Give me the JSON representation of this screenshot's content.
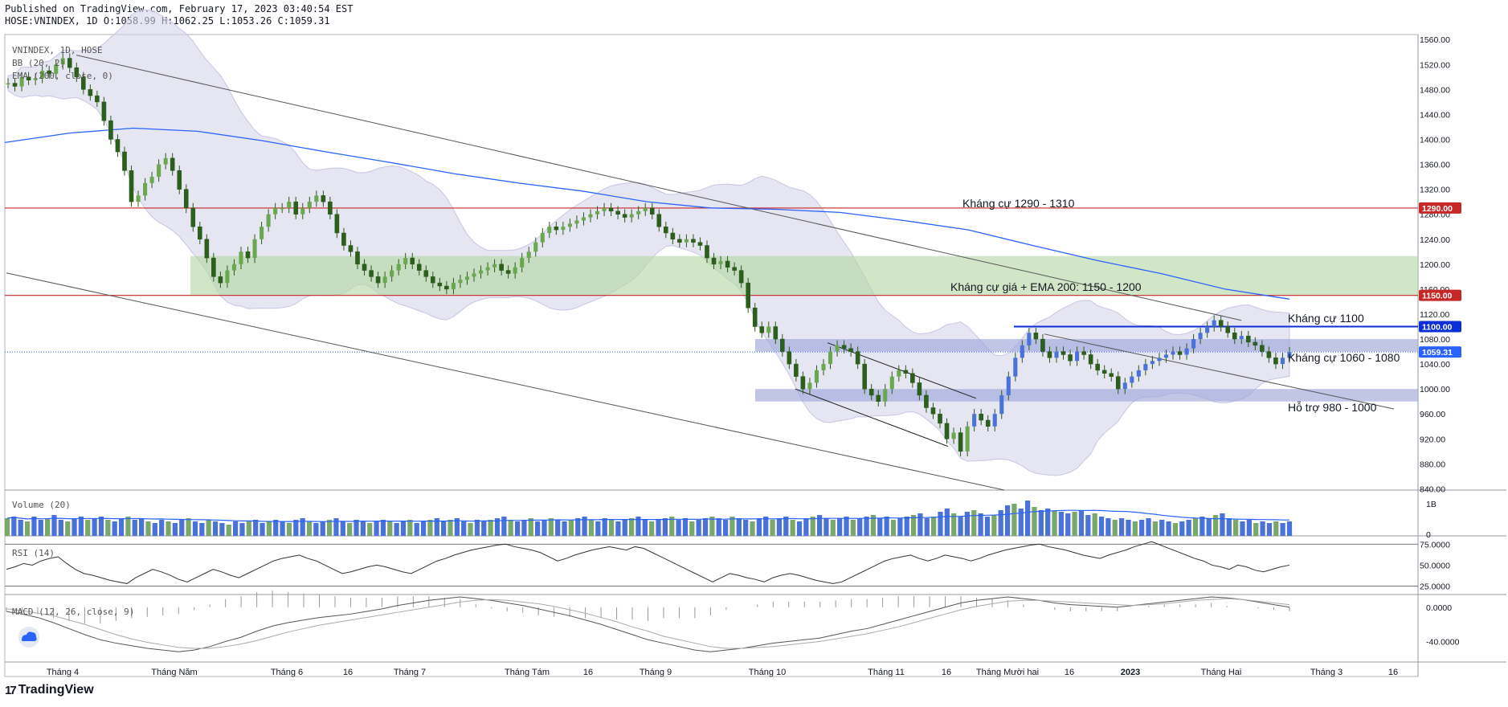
{
  "header": {
    "published": "Published on TradingView.com, February 17, 2023 03:40:54 EST",
    "ohlc": "HOSE:VNINDEX, 1D O:1058.99 H:1062.25 L:1053.26 C:1059.31"
  },
  "brand": {
    "logo": "17",
    "name": "TradingView",
    "logo_icon": "tradingview-logo-icon",
    "widget_icon": "cloud-icon"
  },
  "colors": {
    "up": "#6aa84f",
    "down": "#2c5f1e",
    "up_wick": "#2a5a17",
    "bb_fill": "#d6d4ea",
    "ema": "#2962ff",
    "resistance_line": "#c62828",
    "range_zone": "#9fa8da",
    "green_zone": "#b7d9a8",
    "blue_level": "#0d2fd6",
    "volume_up": "#7aa86c",
    "volume_down": "#4a72d8"
  },
  "chart_data": [
    {
      "type": "candlestick",
      "title": "VNINDEX, 1D, HOSE",
      "indicators": [
        "BB (20, 2)",
        "EMA (200, close, 0)"
      ],
      "y_ticks": [
        1560,
        1520,
        1480,
        1440,
        1400,
        1360,
        1320,
        1280,
        1240,
        1200,
        1160,
        1120,
        1080,
        1040,
        1000,
        960,
        920,
        880,
        840
      ],
      "ylim": [
        838,
        1568
      ],
      "x_ticks": [
        "Tháng 4",
        "Tháng Năm",
        "Tháng 6",
        "16",
        "Tháng 7",
        "Tháng Tám",
        "16",
        "Tháng 9",
        "Tháng 10",
        "Tháng 11",
        "16",
        "Tháng Mười hai",
        "16",
        "2023",
        "Tháng Hai",
        "Tháng 3",
        "16"
      ],
      "closes": [
        1490,
        1485,
        1500,
        1495,
        1498,
        1510,
        1505,
        1520,
        1530,
        1515,
        1500,
        1480,
        1470,
        1460,
        1430,
        1400,
        1380,
        1350,
        1300,
        1310,
        1330,
        1340,
        1360,
        1370,
        1350,
        1320,
        1290,
        1260,
        1240,
        1210,
        1180,
        1170,
        1190,
        1200,
        1220,
        1210,
        1240,
        1260,
        1280,
        1290,
        1290,
        1300,
        1280,
        1290,
        1300,
        1310,
        1300,
        1280,
        1250,
        1230,
        1220,
        1200,
        1190,
        1180,
        1170,
        1180,
        1190,
        1200,
        1210,
        1200,
        1190,
        1180,
        1170,
        1165,
        1160,
        1170,
        1175,
        1180,
        1185,
        1190,
        1195,
        1200,
        1190,
        1185,
        1195,
        1210,
        1220,
        1235,
        1250,
        1260,
        1255,
        1260,
        1265,
        1270,
        1275,
        1280,
        1285,
        1290,
        1285,
        1280,
        1275,
        1280,
        1285,
        1290,
        1280,
        1260,
        1250,
        1240,
        1235,
        1240,
        1235,
        1230,
        1210,
        1200,
        1205,
        1195,
        1190,
        1170,
        1130,
        1100,
        1090,
        1100,
        1080,
        1060,
        1040,
        1020,
        1000,
        1010,
        1030,
        1040,
        1060,
        1070,
        1065,
        1060,
        1040,
        1000,
        990,
        980,
        1000,
        1020,
        1030,
        1025,
        1010,
        990,
        970,
        960,
        945,
        920,
        930,
        900,
        940,
        960,
        950,
        940,
        960,
        990,
        1020,
        1050,
        1070,
        1090,
        1080,
        1060,
        1050,
        1060,
        1055,
        1045,
        1060,
        1055,
        1040,
        1030,
        1025,
        1020,
        1000,
        1010,
        1020,
        1030,
        1040,
        1045,
        1050,
        1055,
        1060,
        1055,
        1065,
        1080,
        1090,
        1100,
        1110,
        1100,
        1090,
        1080,
        1085,
        1075,
        1070,
        1060,
        1050,
        1040,
        1050,
        1059.31
      ],
      "ema200_approx": [
        1395,
        1410,
        1418,
        1413,
        1398,
        1380,
        1363,
        1345,
        1330,
        1317,
        1300,
        1290,
        1288,
        1283,
        1270,
        1255,
        1230,
        1206,
        1185,
        1160,
        1144
      ],
      "levels": [
        {
          "name": "resistance",
          "value": 1290,
          "label": "1290.00",
          "color": "#c62828"
        },
        {
          "name": "resistance",
          "value": 1150,
          "label": "1150.00",
          "color": "#c62828"
        },
        {
          "name": "blue",
          "value": 1100,
          "label": "1100.00",
          "color": "#0d2fd6"
        },
        {
          "name": "last",
          "value": 1059.31,
          "label": "1059.31",
          "color": "#2962ff"
        }
      ],
      "zones": [
        {
          "label": "",
          "from": 1150,
          "to": 1213,
          "color": "#b7d9a8"
        },
        {
          "label": "",
          "from": 1060,
          "to": 1080,
          "color": "#9fa8da"
        },
        {
          "label": "",
          "from": 980,
          "to": 1000,
          "color": "#9fa8da"
        }
      ],
      "annotations": [
        {
          "text": "Kháng cự 1290 - 1310"
        },
        {
          "text": "Kháng cự giá + EMA 200: 1150 - 1200"
        },
        {
          "text": "Kháng cự 1100"
        },
        {
          "text": "Kháng cự 1060 - 1080"
        },
        {
          "text": "Hỗ trợ 980 - 1000"
        }
      ]
    },
    {
      "type": "bar",
      "title": "Volume (20)",
      "y_ticks": [
        "1B",
        "0"
      ],
      "volumes": [
        0.55,
        0.6,
        0.5,
        0.45,
        0.6,
        0.5,
        0.55,
        0.65,
        0.5,
        0.45,
        0.55,
        0.6,
        0.5,
        0.55,
        0.6,
        0.5,
        0.45,
        0.55,
        0.6,
        0.5,
        0.55,
        0.45,
        0.4,
        0.5,
        0.45,
        0.4,
        0.5,
        0.55,
        0.45,
        0.4,
        0.5,
        0.45,
        0.4,
        0.35,
        0.45,
        0.4,
        0.45,
        0.5,
        0.4,
        0.45,
        0.5,
        0.45,
        0.4,
        0.5,
        0.55,
        0.45,
        0.4,
        0.45,
        0.5,
        0.55,
        0.45,
        0.4,
        0.5,
        0.45,
        0.4,
        0.45,
        0.5,
        0.45,
        0.4,
        0.45,
        0.5,
        0.4,
        0.45,
        0.5,
        0.55,
        0.45,
        0.5,
        0.55,
        0.45,
        0.4,
        0.5,
        0.45,
        0.5,
        0.55,
        0.6,
        0.5,
        0.45,
        0.5,
        0.55,
        0.45,
        0.5,
        0.55,
        0.5,
        0.45,
        0.5,
        0.55,
        0.6,
        0.5,
        0.45,
        0.55,
        0.5,
        0.45,
        0.5,
        0.55,
        0.6,
        0.5,
        0.45,
        0.5,
        0.55,
        0.6,
        0.5,
        0.55,
        0.45,
        0.5,
        0.55,
        0.6,
        0.55,
        0.5,
        0.6,
        0.55,
        0.5,
        0.45,
        0.55,
        0.6,
        0.5,
        0.55,
        0.6,
        0.5,
        0.45,
        0.55,
        0.6,
        0.65,
        0.55,
        0.5,
        0.55,
        0.6,
        0.5,
        0.55,
        0.6,
        0.65,
        0.55,
        0.6,
        0.5,
        0.55,
        0.6,
        0.65,
        0.7,
        0.55,
        0.6,
        0.75,
        0.85,
        0.7,
        0.6,
        0.75,
        0.8,
        0.7,
        0.6,
        0.65,
        0.8,
        0.95,
        1.0,
        0.85,
        1.1,
        0.9,
        0.8,
        0.85,
        0.8,
        0.75,
        0.7,
        0.75,
        0.8,
        0.65,
        0.7,
        0.6,
        0.55,
        0.5,
        0.55,
        0.5,
        0.45,
        0.5,
        0.55,
        0.45,
        0.5,
        0.45,
        0.4,
        0.45,
        0.5,
        0.55,
        0.6,
        0.55,
        0.65,
        0.7,
        0.55,
        0.5,
        0.45,
        0.5,
        0.4,
        0.45,
        0.4,
        0.45,
        0.4,
        0.45
      ]
    },
    {
      "type": "line",
      "title": "RSI (14)",
      "y_ticks": [
        "75.0000",
        "50.0000",
        "25.0000"
      ],
      "ylim": [
        15,
        82
      ],
      "values": [
        45,
        48,
        52,
        50,
        55,
        58,
        60,
        52,
        45,
        40,
        38,
        35,
        32,
        30,
        28,
        35,
        40,
        45,
        42,
        38,
        33,
        30,
        35,
        40,
        45,
        42,
        38,
        35,
        40,
        45,
        50,
        55,
        58,
        60,
        62,
        58,
        55,
        50,
        45,
        40,
        42,
        45,
        48,
        50,
        48,
        45,
        42,
        40,
        45,
        50,
        55,
        58,
        62,
        65,
        68,
        70,
        72,
        74,
        75,
        72,
        70,
        68,
        65,
        60,
        55,
        58,
        62,
        65,
        68,
        70,
        72,
        70,
        68,
        72,
        70,
        65,
        60,
        55,
        50,
        45,
        40,
        35,
        30,
        35,
        40,
        38,
        35,
        33,
        30,
        35,
        38,
        40,
        38,
        35,
        32,
        30,
        28,
        30,
        35,
        40,
        45,
        50,
        55,
        58,
        60,
        62,
        58,
        55,
        58,
        62,
        60,
        58,
        55,
        58,
        62,
        65,
        68,
        70,
        72,
        74,
        75,
        72,
        70,
        68,
        65,
        62,
        60,
        58,
        62,
        65,
        68,
        72,
        75,
        78,
        74,
        70,
        66,
        62,
        58,
        55,
        50,
        48,
        45,
        50,
        48,
        44,
        42,
        45,
        48,
        50
      ]
    },
    {
      "type": "line",
      "title": "MACD (12, 26, close, 9)",
      "y_ticks": [
        "0.0000",
        "-40.0000"
      ],
      "ylim": [
        -64,
        12
      ],
      "macd": [
        -5,
        -8,
        -12,
        -18,
        -25,
        -32,
        -38,
        -42,
        -45,
        -48,
        -50,
        -52,
        -50,
        -46,
        -40,
        -35,
        -28,
        -22,
        -18,
        -15,
        -12,
        -10,
        -8,
        -5,
        -2,
        2,
        5,
        8,
        10,
        12,
        10,
        8,
        5,
        2,
        -2,
        -6,
        -10,
        -15,
        -20,
        -26,
        -32,
        -38,
        -42,
        -46,
        -50,
        -52,
        -50,
        -48,
        -45,
        -42,
        -40,
        -38,
        -36,
        -32,
        -28,
        -25,
        -20,
        -15,
        -10,
        -5,
        0,
        5,
        8,
        10,
        12,
        10,
        8,
        5,
        3,
        2,
        1,
        0,
        2,
        4,
        6,
        8,
        10,
        12,
        11,
        9,
        6,
        3,
        0
      ],
      "signal": [
        -2,
        -4,
        -7,
        -10,
        -15,
        -20,
        -26,
        -32,
        -37,
        -41,
        -44,
        -47,
        -48,
        -48,
        -46,
        -43,
        -39,
        -34,
        -29,
        -25,
        -21,
        -18,
        -15,
        -12,
        -9,
        -6,
        -3,
        0,
        3,
        6,
        8,
        9,
        8,
        6,
        4,
        1,
        -3,
        -7,
        -12,
        -17,
        -23,
        -28,
        -34,
        -38,
        -42,
        -46,
        -48,
        -48,
        -47,
        -46,
        -44,
        -42,
        -40,
        -37,
        -34,
        -31,
        -27,
        -23,
        -18,
        -13,
        -8,
        -3,
        1,
        4,
        7,
        8,
        8,
        7,
        6,
        5,
        4,
        3,
        2,
        3,
        4,
        6,
        8,
        9,
        10,
        9,
        7,
        5,
        3
      ]
    }
  ]
}
